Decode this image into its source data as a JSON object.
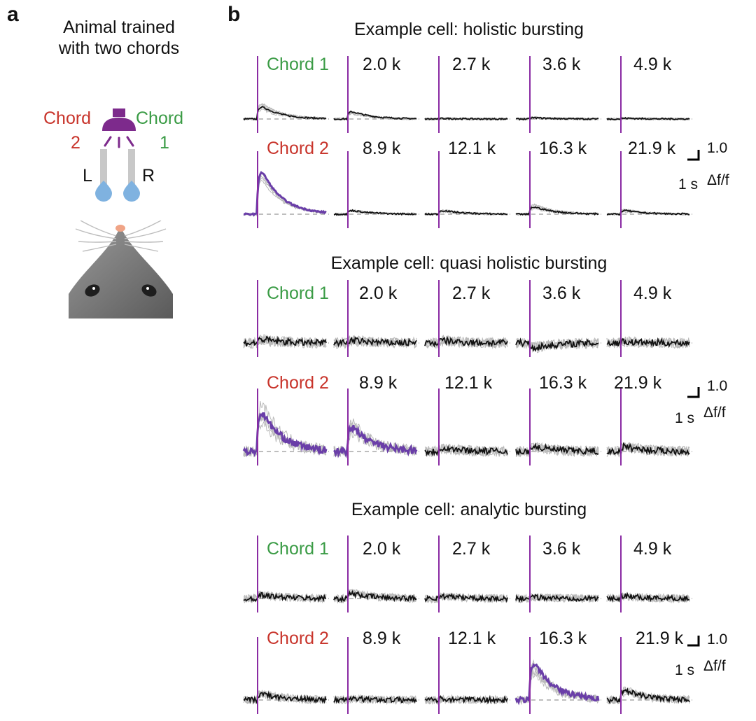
{
  "panel_a": {
    "letter": "a",
    "caption_line1": "Animal trained",
    "caption_line2": "with two chords",
    "left_choice": {
      "word": "Chord",
      "number": "2",
      "side": "L"
    },
    "right_choice": {
      "word": "Chord",
      "number": "1",
      "side": "R"
    }
  },
  "panel_b": {
    "letter": "b",
    "scale_bar": {
      "value": "1.0",
      "unit": "Δf/f",
      "time": "1 s"
    },
    "cells": [
      {
        "title": "Example cell: holistic bursting",
        "rows": [
          {
            "labels": [
              "Chord 1",
              "2.0 k",
              "2.7 k",
              "3.6 k",
              "4.9 k"
            ],
            "peaks": [
              0.5,
              0.3,
              0.02,
              0.05,
              0.03
            ],
            "noise": 0.02
          },
          {
            "labels": [
              "Chord 2",
              "8.9 k",
              "12.1 k",
              "16.3 k",
              "21.9 k"
            ],
            "peaks": [
              1.75,
              0.15,
              0.15,
              0.3,
              0.15
            ],
            "noise": 0.02
          }
        ]
      },
      {
        "title": "Example cell: quasi holistic bursting",
        "rows": [
          {
            "labels": [
              "Chord 1",
              "2.0 k",
              "2.7 k",
              "3.6 k",
              "4.9 k"
            ],
            "peaks": [
              0.15,
              0.1,
              0.1,
              -0.2,
              0.05
            ],
            "noise": 0.09
          },
          {
            "labels": [
              "Chord 2",
              "8.9 k",
              "12.1 k",
              "16.3 k",
              "21.9 k"
            ],
            "peaks": [
              1.6,
              1.0,
              0.15,
              0.2,
              0.2
            ],
            "noise": 0.09
          }
        ]
      },
      {
        "title": "Example cell: analytic bursting",
        "rows": [
          {
            "labels": [
              "Chord 1",
              "2.0 k",
              "2.7 k",
              "3.6 k",
              "4.9 k"
            ],
            "peaks": [
              0.15,
              0.2,
              0.1,
              0.05,
              0.1
            ],
            "noise": 0.07
          },
          {
            "labels": [
              "Chord 2",
              "8.9 k",
              "12.1 k",
              "16.3 k",
              "21.9 k"
            ],
            "peaks": [
              0.25,
              0.05,
              0.05,
              1.5,
              0.4
            ],
            "noise": 0.07
          }
        ]
      }
    ]
  },
  "colors": {
    "chord1": "#3a9b45",
    "chord2": "#c8342b",
    "stimulus_line": "#8a2ba3",
    "response_trace": "#6a3ea8",
    "mean_trace": "#111111",
    "trial_trace": "#b8b8b8",
    "baseline": "#a8a8a8",
    "speaker": "#7d2a8c",
    "spout": "#7fb2e0"
  }
}
